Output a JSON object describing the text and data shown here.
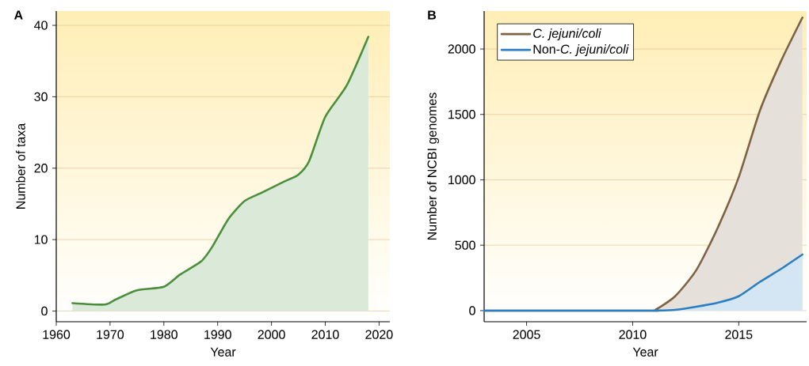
{
  "chart_data": [
    {
      "type": "area",
      "title": "A",
      "xlabel": "Year",
      "ylabel": "Number of taxa",
      "xlim": [
        1960,
        2022
      ],
      "ylim": [
        -1.5,
        42
      ],
      "xticks": [
        1960,
        1970,
        1980,
        1990,
        2000,
        2010,
        2020
      ],
      "yticks": [
        0,
        10,
        20,
        30,
        40
      ],
      "grid": "y",
      "x": [
        1963,
        1969,
        1971,
        1975,
        1980,
        1983,
        1987,
        1989,
        1992,
        1995,
        1998,
        2002,
        2005,
        2007,
        2010,
        2014,
        2018
      ],
      "series": [
        {
          "color": "#4a8f3c",
          "values": [
            1.1,
            0.9,
            1.6,
            2.9,
            3.4,
            5.1,
            7.0,
            9.0,
            12.9,
            15.4,
            16.5,
            18.0,
            19.1,
            21.0,
            27.2,
            31.6,
            38.4
          ]
        }
      ]
    },
    {
      "type": "area",
      "title": "B",
      "xlabel": "Year",
      "ylabel": "Number of NCBI genomes",
      "xlim": [
        2003,
        2018.2
      ],
      "ylim": [
        -85,
        2290
      ],
      "xticks": [
        2005,
        2010,
        2015
      ],
      "yticks": [
        0,
        500,
        1000,
        1500,
        2000
      ],
      "grid": "y",
      "legend": "top left",
      "x": [
        2003,
        2010.7,
        2011.1,
        2012,
        2013,
        2014,
        2015,
        2016,
        2017,
        2018
      ],
      "series": [
        {
          "name": "*C. jejuni/coli*",
          "color": "#7e6244",
          "values": [
            0,
            0,
            10,
            110,
            310,
            630,
            1020,
            1530,
            1910,
            2240
          ]
        },
        {
          "name": "Non-*C. jejuni/coli*",
          "color": "#2a7fc4",
          "values": [
            0,
            0,
            0,
            6,
            30,
            60,
            110,
            220,
            320,
            429
          ]
        }
      ]
    }
  ]
}
